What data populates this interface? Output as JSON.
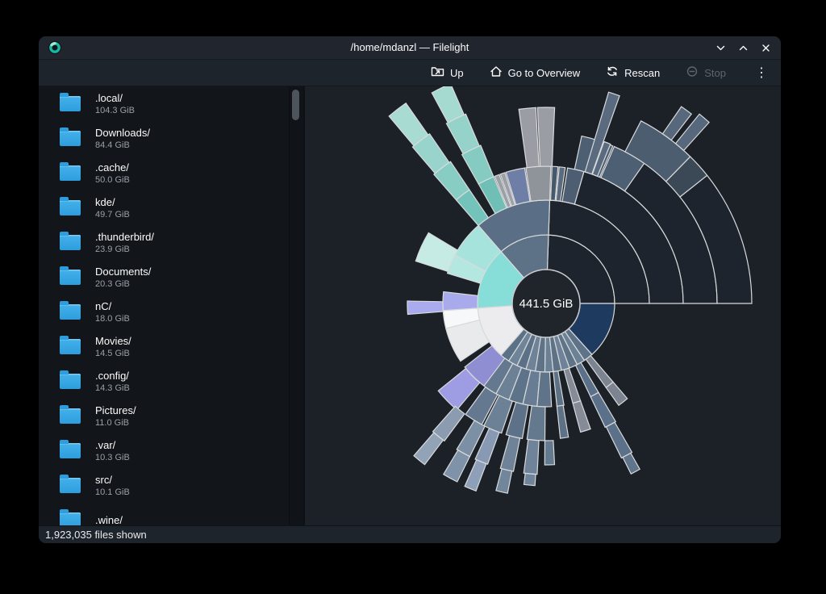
{
  "window": {
    "title": "/home/mdanzl — Filelight",
    "controls": {
      "minimize": "chevron-down",
      "maximize": "chevron-up",
      "close": "x"
    }
  },
  "toolbar": {
    "buttons": [
      {
        "id": "up",
        "label": "Up",
        "enabled": true
      },
      {
        "id": "overview",
        "label": "Go to Overview",
        "enabled": true
      },
      {
        "id": "rescan",
        "label": "Rescan",
        "enabled": true
      },
      {
        "id": "stop",
        "label": "Stop",
        "enabled": false
      }
    ],
    "overflow_menu": "⋮"
  },
  "sidebar": {
    "items": [
      {
        "name": ".local/",
        "size": "104.3 GiB"
      },
      {
        "name": "Downloads/",
        "size": "84.4 GiB"
      },
      {
        "name": ".cache/",
        "size": "50.0 GiB"
      },
      {
        "name": "kde/",
        "size": "49.7 GiB"
      },
      {
        "name": ".thunderbird/",
        "size": "23.9 GiB"
      },
      {
        "name": "Documents/",
        "size": "20.3 GiB"
      },
      {
        "name": "nC/",
        "size": "18.0 GiB"
      },
      {
        "name": "Movies/",
        "size": "14.5 GiB"
      },
      {
        "name": ".config/",
        "size": "14.3 GiB"
      },
      {
        "name": "Pictures/",
        "size": "11.0 GiB"
      },
      {
        "name": ".var/",
        "size": "10.3 GiB"
      },
      {
        "name": "src/",
        "size": "10.1 GiB"
      },
      {
        "name": ".wine/",
        "size": ""
      }
    ]
  },
  "status": {
    "text": "1,923,035 files shown"
  },
  "colors": {
    "titlebar": "#21262e",
    "toolbar": "#1e242b",
    "sidebar_bg": "#121519",
    "map_bg": "#1b2127",
    "status_bg": "#1e242b",
    "folder_blue": "#3daee9",
    "text": "#fcfcfc",
    "muted": "#9aa0a6",
    "app_icon_teal": "#17b8a2",
    "dark_fan": "#1d242d",
    "navy": "#1e3a5e",
    "segment_stroke": "#d9dadb"
  },
  "map": {
    "center_label": "441.5 GiB",
    "chart_data": {
      "type": "sunburst",
      "title": "Filelight radial disk-usage map of /home/mdanzl",
      "total_label": "441.5 GiB",
      "total_gib": 441.5,
      "directories": [
        {
          "name": ".local/",
          "gib": 104.3
        },
        {
          "name": "Downloads/",
          "gib": 84.4
        },
        {
          "name": ".cache/",
          "gib": 50.0
        },
        {
          "name": "kde/",
          "gib": 49.7
        },
        {
          "name": ".thunderbird/",
          "gib": 23.9
        },
        {
          "name": "Documents/",
          "gib": 20.3
        },
        {
          "name": "nC/",
          "gib": 18.0
        },
        {
          "name": "Movies/",
          "gib": 14.5
        },
        {
          "name": ".config/",
          "gib": 14.3
        },
        {
          "name": "Pictures/",
          "gib": 11.0
        },
        {
          "name": ".var/",
          "gib": 10.3
        },
        {
          "name": "src/",
          "gib": 10.1
        },
        {
          "name": ".wine/",
          "gib": null
        }
      ],
      "angle_convention": "degrees counterclockwise from east (3 o'clock)",
      "center": [
        299,
        269
      ],
      "hole_radius": 42,
      "hole_fill": "#20252b",
      "ring_radii": [
        42,
        85,
        128,
        170,
        212,
        255,
        298
      ],
      "stroke": "#d9dadb",
      "background": "#1b2127",
      "segments": [
        [
          0,
          88,
          42,
          85,
          "#1d242d"
        ],
        [
          0,
          88,
          85,
          128,
          "#1d242d"
        ],
        [
          0,
          74,
          128,
          170,
          "#1d242d"
        ],
        [
          74,
          81,
          128,
          170,
          "#4d5e72"
        ],
        [
          82,
          84.5,
          128,
          170,
          "#5a6b7f"
        ],
        [
          85,
          87.5,
          128,
          170,
          "#47586c"
        ],
        [
          0,
          55,
          170,
          212,
          "#1d242d"
        ],
        [
          55,
          66.5,
          170,
          212,
          "#4d5f73"
        ],
        [
          67,
          78,
          170,
          212,
          "#4d5f73"
        ],
        [
          0,
          38.5,
          212,
          255,
          "#1d242d"
        ],
        [
          38.5,
          45.5,
          212,
          255,
          "#3b4856"
        ],
        [
          45.5,
          62.5,
          212,
          255,
          "#4d5d70"
        ],
        [
          48,
          51,
          255,
          302,
          "#57687d"
        ],
        [
          52.5,
          55.5,
          255,
          296,
          "#57687d"
        ],
        [
          70.5,
          73.5,
          170,
          273,
          "#5a6b80"
        ],
        [
          68,
          70.3,
          170,
          213,
          "#5a6b80"
        ],
        [
          88,
          131,
          42,
          85,
          "#5d7187"
        ],
        [
          88,
          131,
          85,
          128,
          "#5a6e85"
        ],
        [
          88,
          98.5,
          128,
          170,
          "#8f939a"
        ],
        [
          87.5,
          92.5,
          170,
          243,
          "#9a9da3"
        ],
        [
          93,
          98,
          170,
          243,
          "#9a9da3"
        ],
        [
          99,
          107,
          128,
          170,
          "#6e7ea6"
        ],
        [
          107.5,
          109.5,
          128,
          170,
          "#9ba0a8"
        ],
        [
          110,
          112,
          128,
          170,
          "#9ba0a8"
        ],
        [
          112.5,
          119.5,
          128,
          170,
          "#6fbfb7"
        ],
        [
          112.5,
          119.5,
          170,
          212,
          "#85cbc1"
        ],
        [
          113,
          119,
          212,
          255,
          "#95d2c9"
        ],
        [
          113.5,
          118.5,
          255,
          297,
          "#a5dad1"
        ],
        [
          124,
          131,
          128,
          170,
          "#74c3ba"
        ],
        [
          124,
          131,
          170,
          212,
          "#88cdc3"
        ],
        [
          124.5,
          130.5,
          212,
          255,
          "#98d4cb"
        ],
        [
          125,
          130,
          255,
          303,
          "#a8dbd2"
        ],
        [
          131,
          184,
          42,
          85,
          "#87ddd7"
        ],
        [
          131,
          152,
          85,
          128,
          "#a6e3dd"
        ],
        [
          152,
          163,
          85,
          128,
          "#b4e7e0"
        ],
        [
          149,
          162,
          128,
          170,
          "#c6ebe4"
        ],
        [
          173.5,
          184,
          85,
          128,
          "#a9aaec"
        ],
        [
          179,
          184.5,
          128,
          172,
          "#a9abee"
        ],
        [
          184,
          229,
          42,
          85,
          "#ececee"
        ],
        [
          184,
          194,
          85,
          128,
          "#f7f8fa"
        ],
        [
          194,
          214,
          85,
          128,
          "#e9eaec"
        ],
        [
          218,
          236,
          85,
          128,
          "#8f8ed3"
        ],
        [
          219,
          230,
          128,
          172,
          "#9e9ce2"
        ],
        [
          229,
          237,
          42,
          85,
          "#5a7186"
        ],
        [
          237,
          245,
          42,
          85,
          "#6d8499"
        ],
        [
          245,
          253,
          42,
          85,
          "#5c7187"
        ],
        [
          253,
          261,
          42,
          85,
          "#6e8298"
        ],
        [
          261,
          269,
          42,
          85,
          "#5e7288"
        ],
        [
          269,
          276,
          42,
          85,
          "#6a8094"
        ],
        [
          276,
          283,
          42,
          85,
          "#5d7287"
        ],
        [
          283,
          290,
          42,
          85,
          "#6e8399"
        ],
        [
          290,
          297,
          42,
          85,
          "#5f7389"
        ],
        [
          297,
          304,
          42,
          85,
          "#6b8196"
        ],
        [
          304,
          312,
          42,
          85,
          "#5e7288"
        ],
        [
          312,
          360,
          42,
          85,
          "#1e3a5e"
        ],
        [
          233,
          241,
          85,
          128,
          "#64798f"
        ],
        [
          241,
          249,
          85,
          128,
          "#6d8196"
        ],
        [
          249,
          257,
          85,
          128,
          "#5d7389"
        ],
        [
          257,
          265,
          85,
          128,
          "#687d93"
        ],
        [
          265,
          273,
          85,
          128,
          "#5f7489"
        ],
        [
          276,
          280,
          85,
          128,
          "#5e7287"
        ],
        [
          285,
          289.5,
          85,
          128,
          "#868c97"
        ],
        [
          285,
          289.5,
          128,
          165,
          "#868c97"
        ],
        [
          295.5,
          300.5,
          85,
          128,
          "#5b7089"
        ],
        [
          305.5,
          310.5,
          85,
          128,
          "#7d8491"
        ],
        [
          305.5,
          310.5,
          128,
          155,
          "#7d8491"
        ],
        [
          234,
          242,
          128,
          170,
          "#64798f"
        ],
        [
          243,
          251,
          128,
          170,
          "#6d8196"
        ],
        [
          253,
          260,
          128,
          170,
          "#5d7288"
        ],
        [
          262,
          269.5,
          128,
          170,
          "#64798e"
        ],
        [
          276,
          279.5,
          128,
          168,
          "#5e7287"
        ],
        [
          295.5,
          300.5,
          128,
          170,
          "#5b7089"
        ],
        [
          228.5,
          233.5,
          170,
          212,
          "#8b9cb1"
        ],
        [
          229,
          233,
          212,
          250,
          "#93a3b7"
        ],
        [
          238.5,
          243.5,
          170,
          212,
          "#7b8fa5"
        ],
        [
          239,
          243.5,
          212,
          247,
          "#7e92a8"
        ],
        [
          245.5,
          250,
          170,
          212,
          "#8799b3"
        ],
        [
          246,
          249.5,
          212,
          248,
          "#8d9fb9"
        ],
        [
          254.5,
          259,
          170,
          212,
          "#6e8398"
        ],
        [
          255,
          258.5,
          212,
          240,
          "#71869b"
        ],
        [
          262.5,
          267,
          170,
          212,
          "#6f849a"
        ],
        [
          263,
          266.5,
          212,
          226,
          "#6f849a"
        ],
        [
          269.5,
          273,
          170,
          200,
          "#647a8f"
        ],
        [
          296,
          300,
          170,
          213,
          "#5b7089"
        ],
        [
          296.5,
          299.5,
          213,
          236,
          "#60748c"
        ]
      ]
    }
  }
}
